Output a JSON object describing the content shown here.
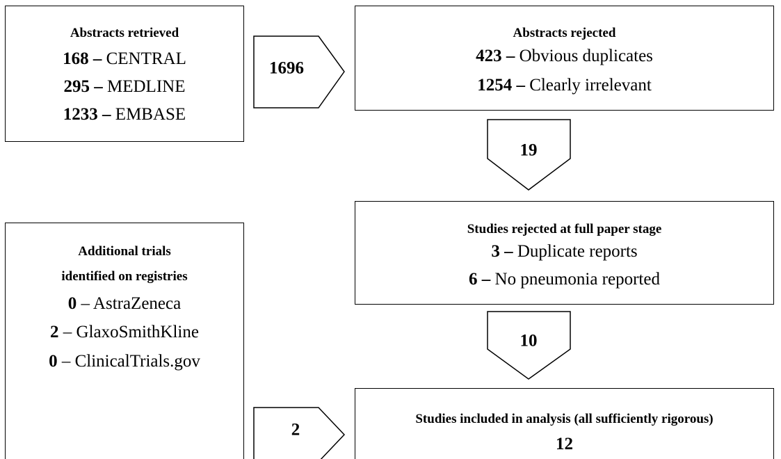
{
  "retrieved": {
    "title": "Abstracts retrieved",
    "items": [
      {
        "number": "168",
        "dash": "–",
        "label": "CENTRAL"
      },
      {
        "number": "295",
        "dash": "–",
        "label": "MEDLINE"
      },
      {
        "number": "1233",
        "dash": "–",
        "label": "EMBASE"
      }
    ]
  },
  "arrow_retrieved": "1696",
  "rejected": {
    "title": "Abstracts rejected",
    "items": [
      {
        "number": "423",
        "dash": "–",
        "label": "Obvious duplicates"
      },
      {
        "number": "1254",
        "dash": "–",
        "label": "Clearly irrelevant"
      }
    ]
  },
  "arrow_rejected": "19",
  "full_paper": {
    "title": "Studies rejected at full paper stage",
    "items": [
      {
        "number": "3",
        "dash": "–",
        "label": "Duplicate reports"
      },
      {
        "number": "6",
        "dash": "–",
        "label": "No pneumonia reported"
      }
    ]
  },
  "arrow_full_paper": "10",
  "registries": {
    "title_lines": [
      "Additional trials",
      "identified on registries"
    ],
    "items": [
      {
        "number": "0",
        "dash": "–",
        "label": "AstraZeneca"
      },
      {
        "number": "2",
        "dash": "–",
        "label": "GlaxoSmithKline"
      },
      {
        "number": "0",
        "dash": "–",
        "label": "ClinicalTrials.gov"
      }
    ]
  },
  "arrow_registries": "2",
  "included": {
    "title": "Studies included in analysis (all sufficiently rigorous)",
    "count": "12"
  }
}
